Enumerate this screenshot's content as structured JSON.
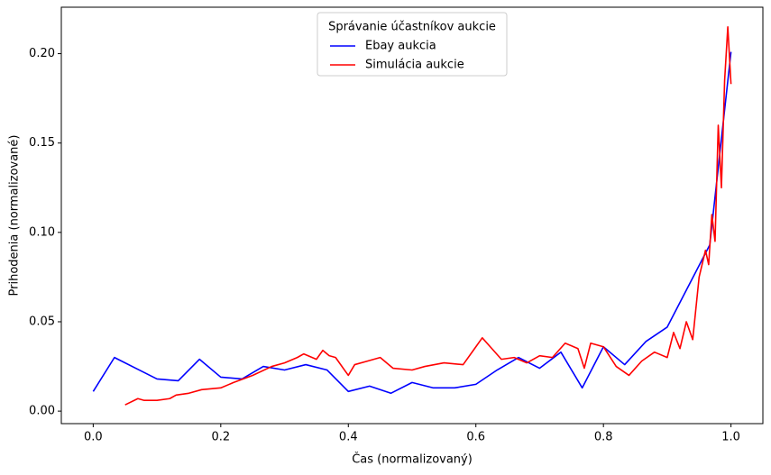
{
  "chart_data": {
    "type": "line",
    "x_label": "Čas (normalizovaný)",
    "y_label": "Prihodenia (normalizované)",
    "legend_title": "Správanie účastníkov aukcie",
    "legend_position": "upper center",
    "grid": false,
    "xlim": [
      -0.05,
      1.05
    ],
    "ylim": [
      -0.007,
      0.226
    ],
    "xticks": [
      {
        "value": 0,
        "label": "0.0"
      },
      0.2,
      0.4,
      0.6,
      0.8,
      {
        "value": 1,
        "label": "1.0"
      }
    ],
    "yticks": [
      {
        "value": 0,
        "label": "0.00"
      },
      {
        "value": 0.05,
        "label": "0.05"
      },
      {
        "value": 0.1,
        "label": "0.10"
      },
      {
        "value": 0.15,
        "label": "0.15"
      },
      {
        "value": 0.2,
        "label": "0.20"
      }
    ],
    "series": [
      {
        "name": "Ebay aukcia",
        "color": "#0000ff",
        "x": [
          0,
          0.0333,
          0.0667,
          0.1,
          0.1333,
          0.1667,
          0.2,
          0.2333,
          0.2667,
          0.3,
          0.3333,
          0.3667,
          0.4,
          0.4333,
          0.4667,
          0.5,
          0.5333,
          0.5667,
          0.6,
          0.6333,
          0.6667,
          0.7,
          0.7333,
          0.7667,
          0.8,
          0.8333,
          0.8667,
          0.9,
          0.9333,
          0.9667,
          1
        ],
        "values": [
          0.011,
          0.03,
          0.024,
          0.018,
          0.017,
          0.029,
          0.019,
          0.018,
          0.025,
          0.023,
          0.026,
          0.023,
          0.011,
          0.014,
          0.01,
          0.016,
          0.013,
          0.013,
          0.015,
          0.023,
          0.03,
          0.024,
          0.033,
          0.013,
          0.036,
          0.026,
          0.039,
          0.047,
          0.07,
          0.093,
          0.201
        ]
      },
      {
        "name": "Simulácia aukcie",
        "color": "#ff0000",
        "x": [
          0.05,
          0.07,
          0.08,
          0.1,
          0.12,
          0.13,
          0.15,
          0.17,
          0.2,
          0.22,
          0.25,
          0.28,
          0.3,
          0.32,
          0.33,
          0.35,
          0.36,
          0.37,
          0.38,
          0.4,
          0.41,
          0.43,
          0.45,
          0.47,
          0.5,
          0.52,
          0.55,
          0.58,
          0.6,
          0.61,
          0.62,
          0.64,
          0.66,
          0.68,
          0.7,
          0.72,
          0.74,
          0.76,
          0.77,
          0.78,
          0.8,
          0.82,
          0.84,
          0.86,
          0.88,
          0.9,
          0.91,
          0.92,
          0.93,
          0.94,
          0.95,
          0.96,
          0.965,
          0.97,
          0.975,
          0.98,
          0.985,
          0.99,
          0.995,
          1.0
        ],
        "values": [
          0.0035,
          0.007,
          0.006,
          0.006,
          0.007,
          0.009,
          0.01,
          0.012,
          0.013,
          0.016,
          0.02,
          0.025,
          0.027,
          0.03,
          0.032,
          0.029,
          0.034,
          0.031,
          0.03,
          0.02,
          0.026,
          0.028,
          0.03,
          0.024,
          0.023,
          0.025,
          0.027,
          0.026,
          0.036,
          0.041,
          0.037,
          0.029,
          0.03,
          0.027,
          0.031,
          0.03,
          0.038,
          0.035,
          0.024,
          0.038,
          0.036,
          0.025,
          0.02,
          0.028,
          0.033,
          0.03,
          0.044,
          0.035,
          0.05,
          0.04,
          0.075,
          0.09,
          0.082,
          0.11,
          0.095,
          0.16,
          0.125,
          0.185,
          0.215,
          0.183
        ]
      }
    ]
  }
}
